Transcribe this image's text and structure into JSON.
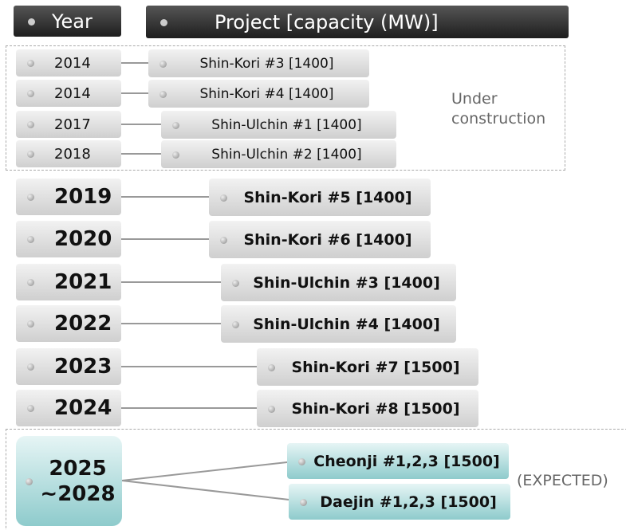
{
  "header": {
    "year": "Year",
    "project": "Project  [capacity (MW)]"
  },
  "under_construction": {
    "label": "Under construction",
    "rows": [
      {
        "year": "2014",
        "project": "Shin-Kori #3 [1400]"
      },
      {
        "year": "2014",
        "project": "Shin-Kori #4 [1400]"
      },
      {
        "year": "2017",
        "project": "Shin-Ulchin #1 [1400]"
      },
      {
        "year": "2018",
        "project": "Shin-Ulchin #2 [1400]"
      }
    ]
  },
  "planned": {
    "rows": [
      {
        "year": "2019",
        "project": "Shin-Kori #5 [1400]"
      },
      {
        "year": "2020",
        "project": "Shin-Kori #6 [1400]"
      },
      {
        "year": "2021",
        "project": "Shin-Ulchin #3 [1400]"
      },
      {
        "year": "2022",
        "project": "Shin-Ulchin #4 [1400]"
      },
      {
        "year": "2023",
        "project": "Shin-Kori #7 [1500]"
      },
      {
        "year": "2024",
        "project": "Shin-Kori #8 [1500]"
      }
    ]
  },
  "expected": {
    "label": "(EXPECTED)",
    "year_lines": [
      "2025",
      "~2028"
    ],
    "projects": [
      "Cheonji #1,2,3 [1500]",
      "Daejin #1,2,3 [1500]"
    ]
  }
}
